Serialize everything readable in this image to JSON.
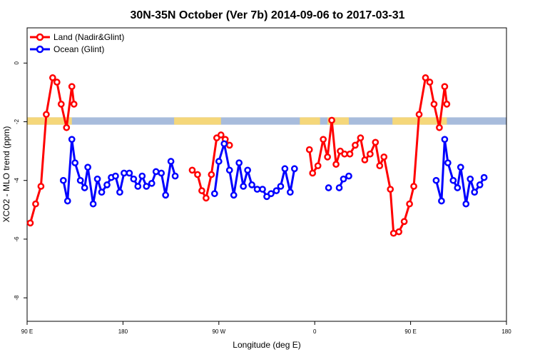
{
  "chart_data": {
    "type": "line",
    "title": "30N-35N October (Ver 7b)   2014-09-06 to 2017-03-31",
    "xlabel": "Longitude (deg E)",
    "ylabel": "XCO2 - MLO trend (ppm)",
    "x_tick_values": [
      90,
      180,
      270,
      360,
      450,
      540
    ],
    "x_tick_labels": [
      "90 E",
      "180",
      "90 W",
      "0",
      "90 E",
      "180"
    ],
    "y_tick_values": [
      0,
      -2,
      -4,
      -6,
      -8
    ],
    "y_tick_labels": [
      "0",
      "-2",
      "-4",
      "-6",
      "-8"
    ],
    "xlim": [
      90,
      540
    ],
    "ylim": [
      -8.8,
      1.2
    ],
    "grid": false,
    "legend_position": "top-left",
    "land_mask_band": {
      "y_range": [
        -2.1,
        -1.85
      ],
      "land_color": "#f5d77a",
      "ocean_color": "#a8bcdc"
    },
    "series": [
      {
        "name": "Land (Nadir&Glint)",
        "color": "#ff0000",
        "segments": [
          [
            [
              93,
              -5.45
            ],
            [
              98,
              -4.8
            ],
            [
              103,
              -4.2
            ],
            [
              108,
              -1.75
            ],
            [
              114,
              -0.5
            ],
            [
              118,
              -0.65
            ],
            [
              122,
              -1.4
            ],
            [
              127,
              -2.2
            ],
            [
              132,
              -0.8
            ],
            [
              134,
              -1.4
            ]
          ],
          [
            [
              245,
              -3.65
            ],
            [
              250,
              -3.8
            ],
            [
              254,
              -4.35
            ],
            [
              258,
              -4.6
            ],
            [
              263,
              -3.8
            ],
            [
              268,
              -2.55
            ],
            [
              272,
              -2.45
            ],
            [
              276,
              -2.6
            ],
            [
              280,
              -2.8
            ]
          ],
          [
            [
              355,
              -2.95
            ],
            [
              358,
              -3.75
            ],
            [
              363,
              -3.5
            ],
            [
              368,
              -2.6
            ],
            [
              372,
              -3.2
            ],
            [
              376,
              -1.95
            ],
            [
              380,
              -3.45
            ],
            [
              384,
              -3.0
            ],
            [
              388,
              -3.1
            ],
            [
              393,
              -3.1
            ],
            [
              398,
              -2.8
            ],
            [
              403,
              -2.55
            ],
            [
              407,
              -3.3
            ],
            [
              412,
              -3.1
            ],
            [
              417,
              -2.7
            ],
            [
              421,
              -3.5
            ],
            [
              425,
              -3.2
            ],
            [
              431,
              -4.3
            ],
            [
              434,
              -5.8
            ],
            [
              439,
              -5.75
            ],
            [
              444,
              -5.4
            ],
            [
              449,
              -4.8
            ],
            [
              453,
              -4.2
            ],
            [
              458,
              -1.75
            ],
            [
              464,
              -0.5
            ],
            [
              468,
              -0.65
            ],
            [
              472,
              -1.4
            ],
            [
              477,
              -2.2
            ],
            [
              482,
              -0.8
            ],
            [
              484,
              -1.4
            ]
          ]
        ]
      },
      {
        "name": "Ocean (Glint)",
        "color": "#0000ff",
        "segments": [
          [
            [
              124,
              -4.0
            ],
            [
              128,
              -4.7
            ],
            [
              132,
              -2.6
            ],
            [
              135,
              -3.4
            ],
            [
              140,
              -4.0
            ],
            [
              144,
              -4.25
            ],
            [
              147,
              -3.55
            ],
            [
              152,
              -4.8
            ],
            [
              156,
              -3.95
            ],
            [
              160,
              -4.4
            ],
            [
              165,
              -4.15
            ],
            [
              169,
              -3.9
            ],
            [
              173,
              -3.85
            ],
            [
              177,
              -4.4
            ],
            [
              181,
              -3.75
            ],
            [
              186,
              -3.75
            ],
            [
              190,
              -3.95
            ],
            [
              194,
              -4.2
            ],
            [
              198,
              -3.85
            ],
            [
              202,
              -4.2
            ],
            [
              207,
              -4.1
            ],
            [
              211,
              -3.7
            ],
            [
              216,
              -3.75
            ],
            [
              220,
              -4.5
            ],
            [
              225,
              -3.35
            ],
            [
              229,
              -3.85
            ]
          ],
          [
            [
              266,
              -4.45
            ],
            [
              270,
              -3.35
            ],
            [
              275,
              -2.75
            ],
            [
              280,
              -3.65
            ],
            [
              284,
              -4.5
            ],
            [
              289,
              -3.4
            ],
            [
              293,
              -4.2
            ],
            [
              297,
              -3.65
            ],
            [
              301,
              -4.15
            ],
            [
              306,
              -4.3
            ],
            [
              311,
              -4.3
            ],
            [
              315,
              -4.55
            ],
            [
              319,
              -4.45
            ],
            [
              324,
              -4.35
            ],
            [
              328,
              -4.2
            ],
            [
              332,
              -3.6
            ],
            [
              337,
              -4.4
            ],
            [
              341,
              -3.6
            ]
          ],
          [
            [
              373,
              -4.25
            ]
          ],
          [
            [
              383,
              -4.25
            ],
            [
              387,
              -3.95
            ],
            [
              392,
              -3.85
            ]
          ],
          [
            [
              474,
              -4.0
            ],
            [
              479,
              -4.7
            ],
            [
              482,
              -2.6
            ],
            [
              485,
              -3.4
            ],
            [
              490,
              -4.0
            ],
            [
              494,
              -4.25
            ],
            [
              497,
              -3.55
            ],
            [
              502,
              -4.8
            ],
            [
              506,
              -3.95
            ],
            [
              510,
              -4.4
            ],
            [
              515,
              -4.15
            ],
            [
              519,
              -3.9
            ]
          ]
        ]
      }
    ]
  }
}
